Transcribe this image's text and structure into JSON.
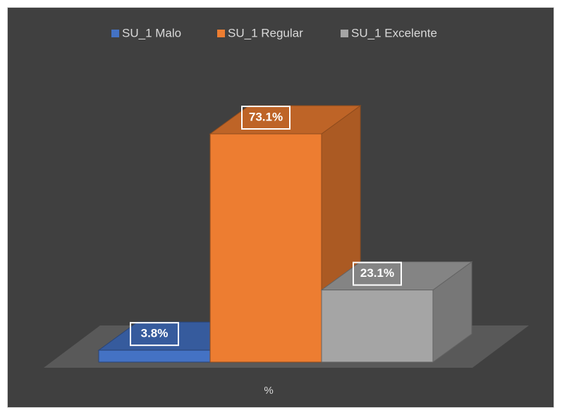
{
  "chart_data": {
    "type": "bar3d",
    "categories": [
      "%"
    ],
    "series": [
      {
        "name": "SU_1 Malo",
        "color": "#4472c4",
        "values": [
          3.8
        ],
        "value_labels": [
          "3.8%"
        ]
      },
      {
        "name": "SU_1 Regular",
        "color": "#ed7d31",
        "values": [
          73.1
        ],
        "value_labels": [
          "73.1%"
        ]
      },
      {
        "name": "SU_1 Excelente",
        "color": "#a5a5a5",
        "values": [
          23.1
        ],
        "value_labels": [
          "23.1%"
        ]
      }
    ]
  }
}
